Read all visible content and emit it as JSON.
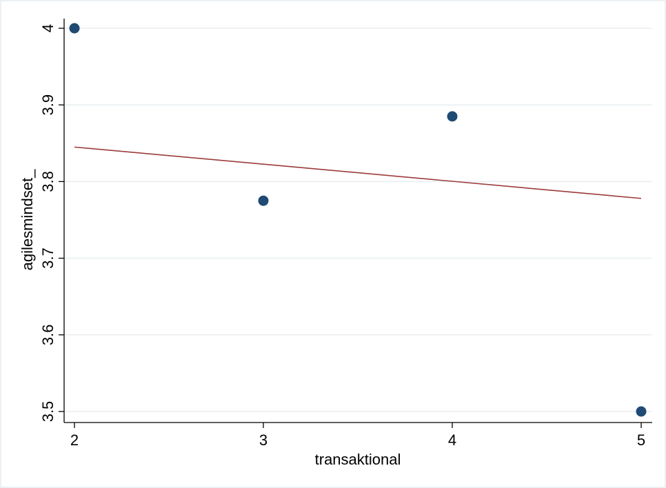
{
  "chart_data": {
    "type": "scatter",
    "title": "",
    "xlabel": "transaktional",
    "ylabel": "agilesmindset_",
    "xlim": [
      2,
      5
    ],
    "ylim": [
      3.5,
      4
    ],
    "x_ticks": [
      2,
      3,
      4,
      5
    ],
    "y_ticks": [
      3.5,
      3.6,
      3.7,
      3.8,
      3.9,
      4
    ],
    "x_tick_labels": [
      "2",
      "3",
      "4",
      "5"
    ],
    "y_tick_labels": [
      "3.5",
      "3.6",
      "3.7",
      "3.8",
      "3.9",
      "4"
    ],
    "grid": "horizontal",
    "legend": "none",
    "points": [
      {
        "x": 2,
        "y": 4.0
      },
      {
        "x": 3,
        "y": 3.775
      },
      {
        "x": 4,
        "y": 3.885
      },
      {
        "x": 5,
        "y": 3.5
      }
    ],
    "fit_line": {
      "x": [
        2,
        5
      ],
      "y": [
        3.845,
        3.778
      ]
    },
    "colors": {
      "points": "#1f4a73",
      "fit_line": "#9b3a3a",
      "grid": "#e8eef1",
      "axis": "#000000",
      "frame": "#eaf0f3"
    }
  }
}
